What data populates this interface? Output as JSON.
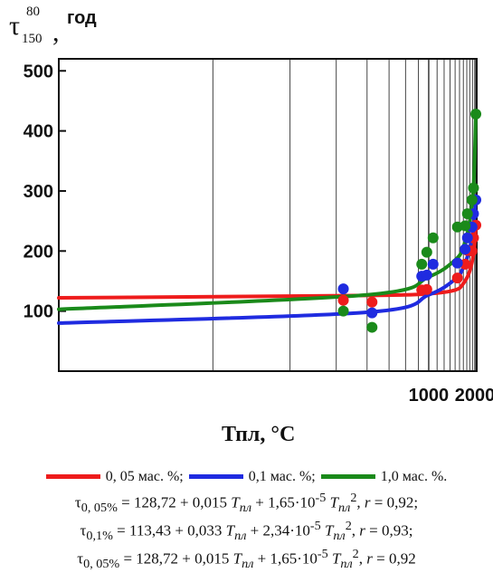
{
  "chart_data": {
    "type": "scatter",
    "y_label_symbol": "τ",
    "y_label_superscript": "80",
    "y_label_subscript": "150",
    "y_unit": "год",
    "xlabel": "Тпл, °С",
    "xticks": [
      "1000",
      "2000"
    ],
    "yticks": [
      "100",
      "200",
      "300",
      "400",
      "500"
    ],
    "xlim": [
      200,
      2080
    ],
    "ylim": [
      0,
      520
    ],
    "x_scale": "reciprocal",
    "grid": "vertical",
    "series": [
      {
        "name": "0, 05 мас. %;",
        "color": "#ee1c1c",
        "fit": [
          [
            200,
            122
          ],
          [
            600,
            126
          ],
          [
            1000,
            129
          ],
          [
            1400,
            135
          ],
          [
            1600,
            146
          ],
          [
            1800,
            167
          ],
          [
            1950,
            198
          ],
          [
            2040,
            238
          ]
        ],
        "points": [
          [
            520,
            118
          ],
          [
            620,
            115
          ],
          [
            930,
            135
          ],
          [
            980,
            136
          ],
          [
            1450,
            155
          ],
          [
            1650,
            178
          ],
          [
            1720,
            201
          ],
          [
            1880,
            200
          ],
          [
            1940,
            222
          ],
          [
            2040,
            243
          ]
        ]
      },
      {
        "name": "0,1 мас. %;",
        "color": "#1f2be0",
        "fit": [
          [
            200,
            80
          ],
          [
            600,
            98
          ],
          [
            1000,
            127
          ],
          [
            1400,
            153
          ],
          [
            1600,
            173
          ],
          [
            1800,
            205
          ],
          [
            1950,
            245
          ],
          [
            2040,
            288
          ]
        ],
        "points": [
          [
            520,
            137
          ],
          [
            620,
            97
          ],
          [
            930,
            158
          ],
          [
            980,
            160
          ],
          [
            1050,
            178
          ],
          [
            1450,
            180
          ],
          [
            1650,
            203
          ],
          [
            1720,
            222
          ],
          [
            1880,
            240
          ],
          [
            1940,
            262
          ],
          [
            2040,
            285
          ]
        ]
      },
      {
        "name": "1,0 мас. %.",
        "color": "#1a8a1a",
        "fit": [
          [
            200,
            103
          ],
          [
            600,
            127
          ],
          [
            1000,
            157
          ],
          [
            1400,
            185
          ],
          [
            1600,
            207
          ],
          [
            1800,
            250
          ],
          [
            1950,
            315
          ],
          [
            2040,
            430
          ]
        ],
        "points": [
          [
            520,
            100
          ],
          [
            620,
            73
          ],
          [
            930,
            178
          ],
          [
            980,
            198
          ],
          [
            1050,
            222
          ],
          [
            1450,
            240
          ],
          [
            1650,
            242
          ],
          [
            1720,
            262
          ],
          [
            1880,
            285
          ],
          [
            1940,
            305
          ],
          [
            2040,
            428
          ]
        ]
      }
    ],
    "equations": [
      {
        "sym": "τ",
        "sub": "0, 05%",
        "mid": " = 128,72 + 0,015 ",
        "T": "T",
        "Tsub": "пл",
        "mid2": " + 1,65·10",
        "exp": "-5",
        "T2": "T",
        "T2sub": "пл",
        "pow": "2",
        "tail": ",  ",
        "r": "r",
        "rval": " = 0,92;"
      },
      {
        "sym": "τ",
        "sub": "0,1%",
        "mid": " = 113,43 + 0,033 ",
        "T": "T",
        "Tsub": "пл",
        "mid2": " + 2,34·10",
        "exp": "-5",
        "T2": "T",
        "T2sub": "пл",
        "pow": "2",
        "tail": ",   ",
        "r": "r",
        "rval": " = 0,93;"
      },
      {
        "sym": "τ",
        "sub": "0, 05%",
        "mid": " = 128,72 + 0,015 ",
        "T": "T",
        "Tsub": "пл",
        "mid2": " + 1,65·10",
        "exp": "-5",
        "T2": "T",
        "T2sub": "пл",
        "pow": "2",
        "tail": ",  ",
        "r": "r",
        "rval": " = 0,92"
      }
    ]
  }
}
